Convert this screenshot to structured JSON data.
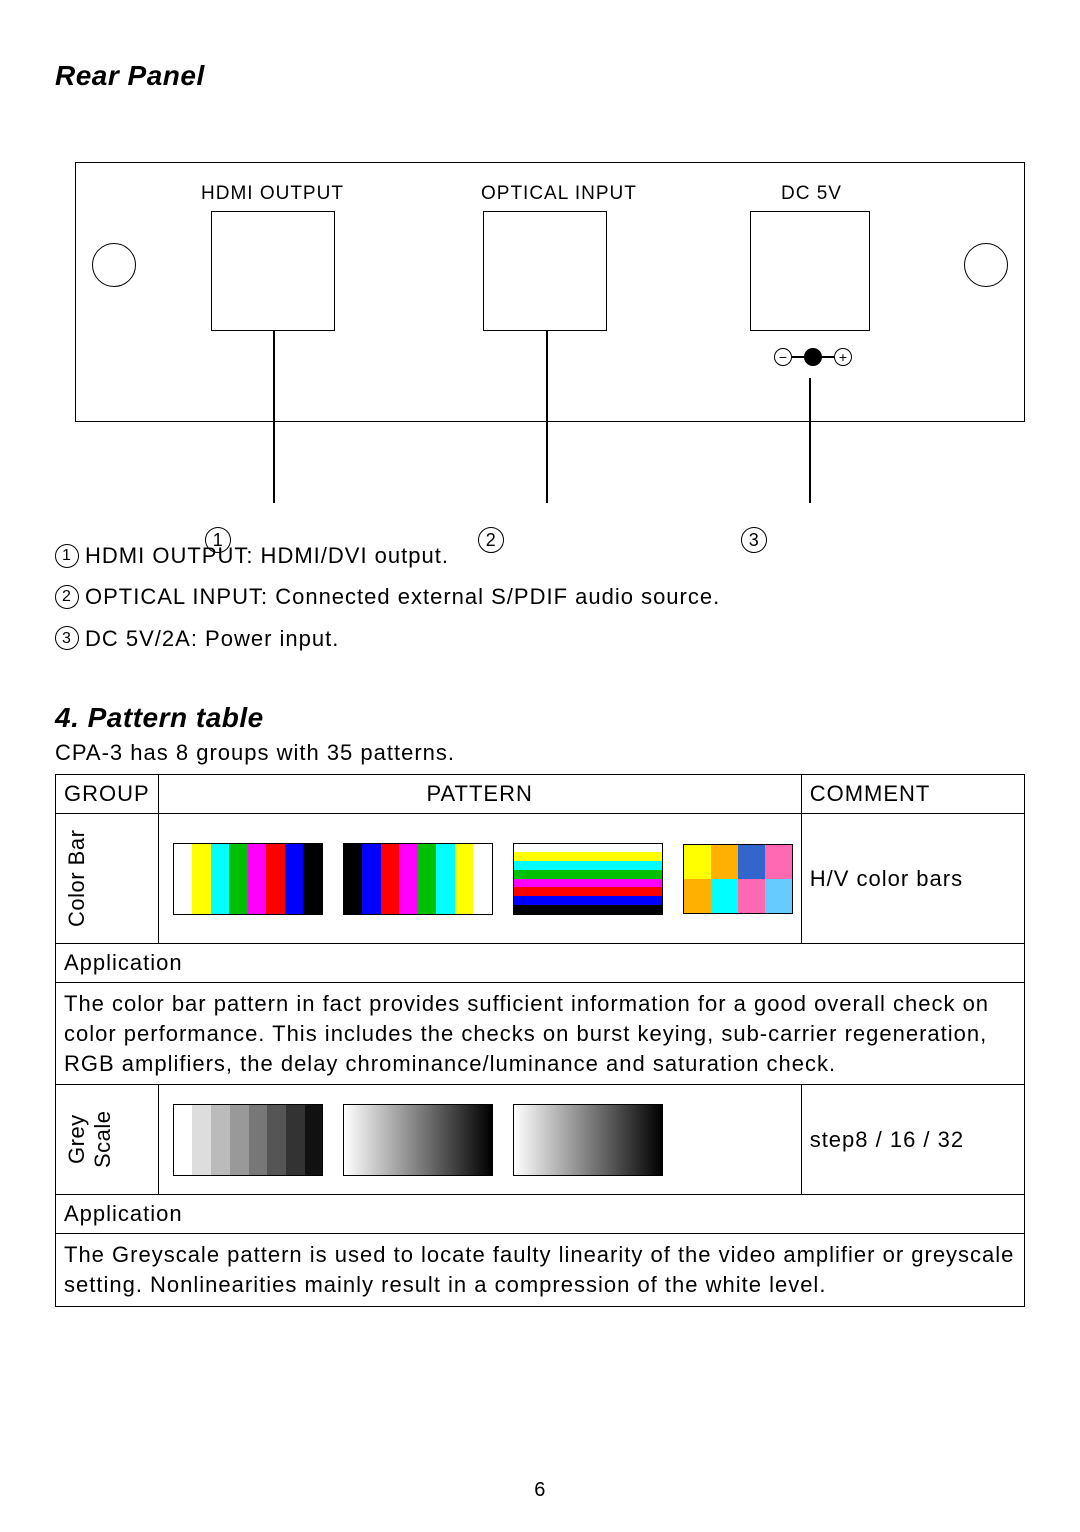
{
  "section1_title": "Rear Panel",
  "diagram": {
    "hdmi_label": "HDMI OUTPUT",
    "optical_label": "OPTICAL INPUT",
    "dc_label": "DC 5V",
    "polarity_minus": "−",
    "polarity_plus": "+"
  },
  "callouts": {
    "n1": "1",
    "n2": "2",
    "n3": "3"
  },
  "legend": {
    "l1": "HDMI OUTPUT: HDMI/DVI output.",
    "l2": "OPTICAL INPUT: Connected external S/PDIF audio source.",
    "l3": "DC 5V/2A: Power input."
  },
  "section2_title": "4. Pattern table",
  "intro": "CPA-3 has 8 groups with 35 patterns.",
  "headers": {
    "group": "GROUP",
    "pattern": "PATTERN",
    "comment": "COMMENT"
  },
  "row1": {
    "group": "Color Bar",
    "comment": "H/V color bars",
    "colors": {
      "vbar8": [
        "#ffffff",
        "#ffff00",
        "#00ffff",
        "#00c000",
        "#ff00ff",
        "#ff0000",
        "#0000ff",
        "#000000"
      ],
      "vbar8b": [
        "#000000",
        "#0000ff",
        "#ff0000",
        "#ff00ff",
        "#00c000",
        "#00ffff",
        "#ffff00",
        "#ffffff"
      ],
      "hbar8": [
        "#ffffff",
        "#ffff00",
        "#00ffff",
        "#00c000",
        "#ff00ff",
        "#ff0000",
        "#0000ff",
        "#000000"
      ],
      "alt_top": [
        "#ffff00",
        "#ffb000",
        "#36c",
        "#ff69b4"
      ],
      "alt_bot": [
        "#ffb000",
        "#00ffff",
        "#ff69b4",
        "#6cf"
      ]
    }
  },
  "app_label": "Application",
  "app1_body": "The color bar pattern in fact provides sufficient information for a good overall check on color performance. This includes the checks on burst keying, sub-carrier regeneration, RGB amplifiers, the delay chrominance/luminance and saturation check.",
  "row2": {
    "group": "Grey Scale",
    "comment": "step8 / 16 / 32",
    "grey8": [
      "#ffffff",
      "#dddddd",
      "#bbbbbb",
      "#999999",
      "#777777",
      "#555555",
      "#333333",
      "#111111"
    ]
  },
  "app2_body": "The Greyscale pattern is used to locate faulty linearity of the video amplifier or greyscale setting. Nonlinearities mainly result in a compression of the white level.",
  "page_number": "6"
}
